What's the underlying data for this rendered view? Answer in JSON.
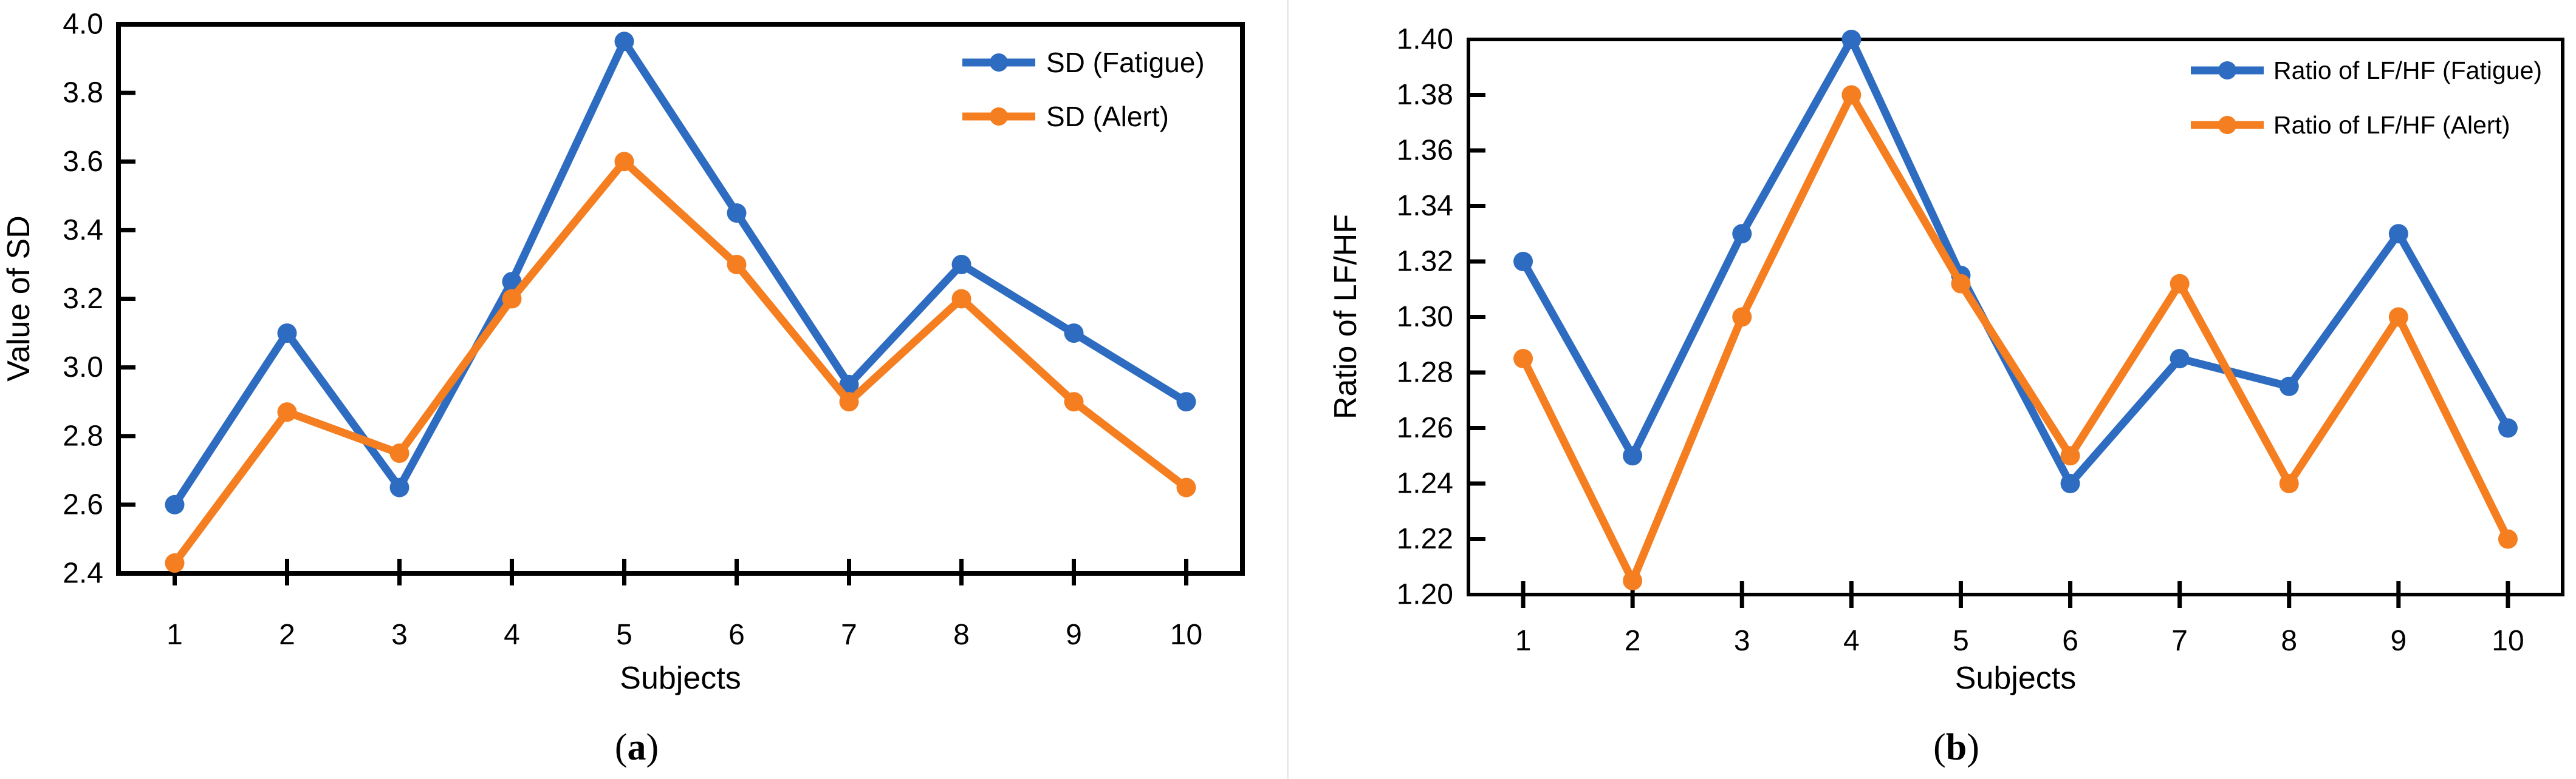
{
  "figure": {
    "panel_a_caption": "(a)",
    "panel_b_caption": "(b)"
  },
  "chart_data": [
    {
      "id": "a",
      "type": "line",
      "caption": "(a)",
      "xlabel": "Subjects",
      "ylabel": "Value of SD",
      "categories": [
        "1",
        "2",
        "3",
        "4",
        "5",
        "6",
        "7",
        "8",
        "9",
        "10"
      ],
      "yticks": [
        "2.4",
        "2.6",
        "2.8",
        "3.0",
        "3.2",
        "3.4",
        "3.6",
        "3.8",
        "4.0"
      ],
      "ylim": [
        2.4,
        4.0
      ],
      "grid": false,
      "legend_position": "top-right-inside",
      "series": [
        {
          "name": "SD（Fatigue）",
          "color": "#2d6cc0",
          "values": [
            2.6,
            3.1,
            2.65,
            3.25,
            3.95,
            3.45,
            2.95,
            3.3,
            3.1,
            2.9
          ]
        },
        {
          "name": "SD（Alert）",
          "color": "#f57e20",
          "values": [
            2.43,
            2.87,
            2.75,
            3.2,
            3.6,
            3.3,
            2.9,
            3.2,
            2.9,
            2.65
          ]
        }
      ]
    },
    {
      "id": "b",
      "type": "line",
      "caption": "(b)",
      "xlabel": "Subjects",
      "ylabel": "Ratio of LF/HF",
      "categories": [
        "1",
        "2",
        "3",
        "4",
        "5",
        "6",
        "7",
        "8",
        "9",
        "10"
      ],
      "yticks": [
        "1.20",
        "1.22",
        "1.24",
        "1.26",
        "1.28",
        "1.30",
        "1.32",
        "1.34",
        "1.36",
        "1.38",
        "1.40"
      ],
      "ylim": [
        1.2,
        1.4
      ],
      "grid": false,
      "legend_position": "top-right-inside",
      "series": [
        {
          "name": "Ratio of LF/HF（Fatigue）",
          "color": "#2d6cc0",
          "values": [
            1.32,
            1.25,
            1.33,
            1.4,
            1.315,
            1.24,
            1.285,
            1.275,
            1.33,
            1.26
          ]
        },
        {
          "name": "Ratio of LF/HF（Alert）",
          "color": "#f57e20",
          "values": [
            1.285,
            1.205,
            1.3,
            1.38,
            1.312,
            1.25,
            1.312,
            1.24,
            1.3,
            1.22
          ]
        }
      ]
    }
  ]
}
